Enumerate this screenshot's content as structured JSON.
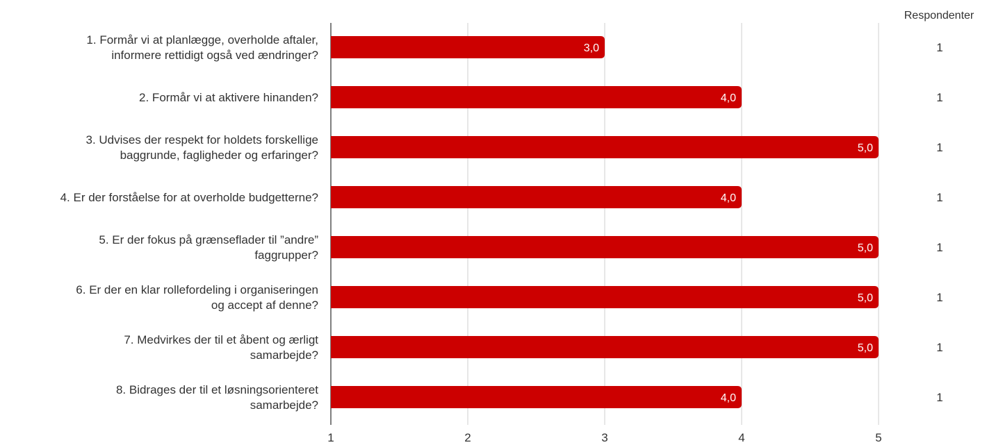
{
  "chart_data": {
    "type": "bar",
    "orientation": "horizontal",
    "categories": [
      [
        "1. Formår vi at planlægge, overholde aftaler,",
        "informere rettidigt også ved ændringer?"
      ],
      [
        "2. Formår vi at aktivere hinanden?"
      ],
      [
        "3. Udvises der respekt for holdets forskellige",
        "baggrunde, fagligheder og erfaringer?"
      ],
      [
        "4. Er der forståelse for at overholde budgetterne?"
      ],
      [
        "5. Er der fokus på grænseflader til ”andre”",
        "faggrupper?"
      ],
      [
        "6. Er der en klar rollefordeling i organiseringen",
        "og accept af denne?"
      ],
      [
        "7. Medvirkes der til et åbent og ærligt",
        "samarbejde?"
      ],
      [
        "8. Bidrages der til et løsningsorienteret",
        "samarbejde?"
      ]
    ],
    "values": [
      3.0,
      4.0,
      5.0,
      4.0,
      5.0,
      5.0,
      5.0,
      4.0
    ],
    "value_labels": [
      "3,0",
      "4,0",
      "5,0",
      "4,0",
      "5,0",
      "5,0",
      "5,0",
      "4,0"
    ],
    "xlim": [
      1,
      5
    ],
    "x_ticks": [
      "1",
      "2",
      "3",
      "4",
      "5"
    ],
    "grid": true,
    "bar_color": "#cc0000",
    "respondents_header": "Respondenter",
    "respondents": [
      "1",
      "1",
      "1",
      "1",
      "1",
      "1",
      "1",
      "1"
    ]
  }
}
